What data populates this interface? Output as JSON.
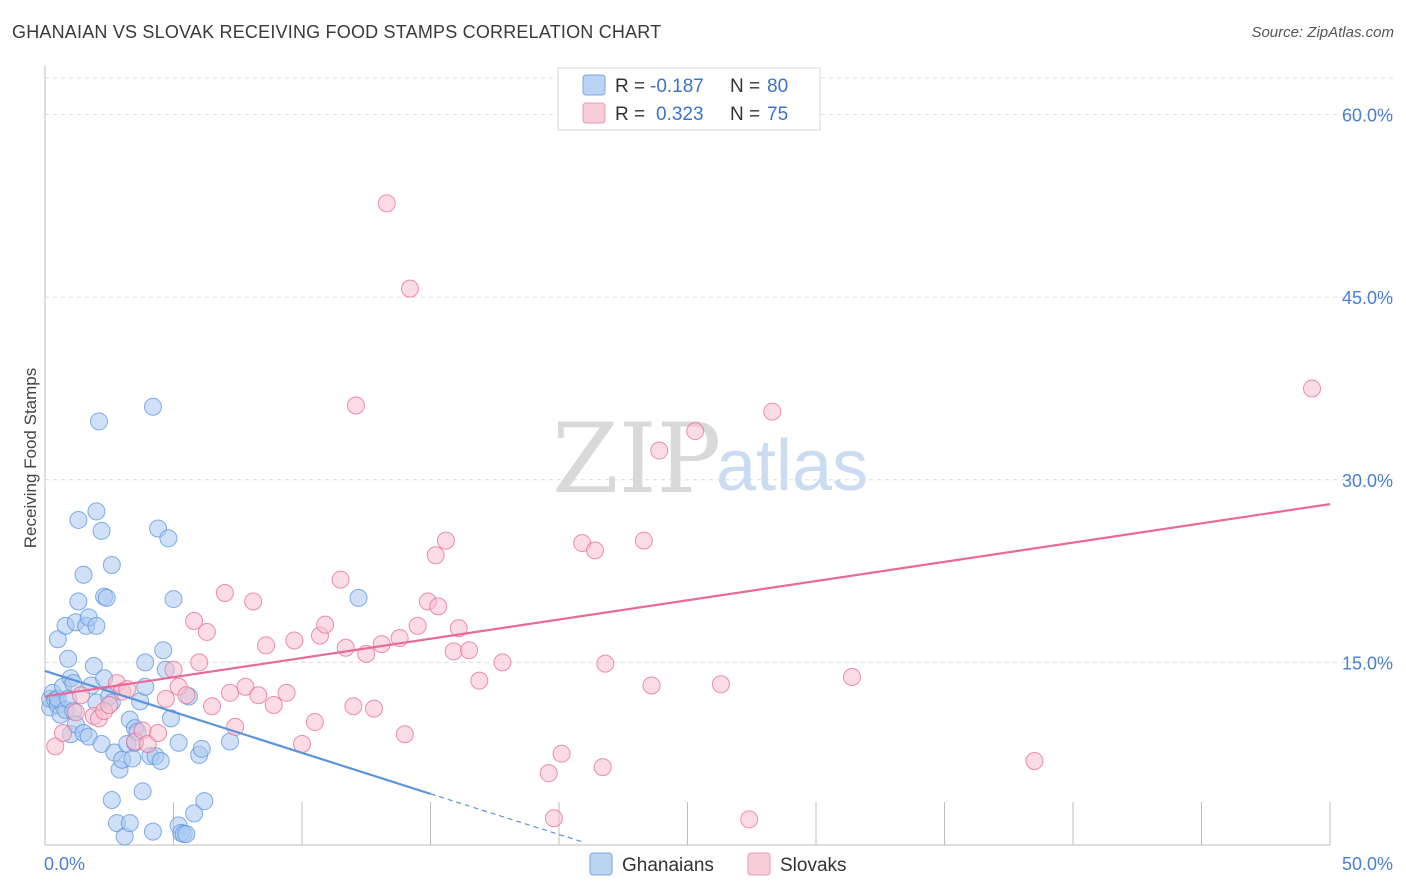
{
  "title": "GHANAIAN VS SLOVAK RECEIVING FOOD STAMPS CORRELATION CHART",
  "source": "Source: ZipAtlas.com",
  "watermark": {
    "zip": "ZIP",
    "atlas": "atlas"
  },
  "legend_top": [
    {
      "r_label": "R =",
      "r_value": "-0.187",
      "n_label": "N =",
      "n_value": "80",
      "color": "#a9c8f0",
      "stroke": "#7aa7e0"
    },
    {
      "r_label": "R =",
      "r_value": "0.323",
      "n_label": "N =",
      "n_value": "75",
      "color": "#f7bfd0",
      "stroke": "#ec9ab4"
    }
  ],
  "legend_bottom": [
    {
      "label": "Ghanaians",
      "color": "#a9c8f0",
      "stroke": "#7aa7e0"
    },
    {
      "label": "Slovaks",
      "color": "#f7bfd0",
      "stroke": "#ec9ab4"
    }
  ],
  "chart_data": {
    "type": "scatter",
    "title": "GHANAIAN VS SLOVAK RECEIVING FOOD STAMPS CORRELATION CHART",
    "ylabel": "Receiving Food Stamps",
    "xlabel": "",
    "xlim": [
      0,
      50
    ],
    "ylim": [
      0,
      63
    ],
    "x_tick_labels": [
      "0.0%",
      "50.0%"
    ],
    "y_ticks": [
      15,
      30,
      45,
      60
    ],
    "y_tick_labels": [
      "15.0%",
      "30.0%",
      "45.0%",
      "60.0%"
    ],
    "grid": true,
    "legend_position": "top-center",
    "series": [
      {
        "name": "Ghanaians",
        "color": "#5b93dc",
        "fill": "#a9c8f0",
        "trend": {
          "x0": 0,
          "y0": 14.3,
          "x1": 15,
          "y1": 4.2,
          "dash_to_x": 21,
          "dash_to_y": 0.2
        },
        "points": [
          [
            0.2,
            11.3
          ],
          [
            0.2,
            12.0
          ],
          [
            0.3,
            12.5
          ],
          [
            0.4,
            11.9
          ],
          [
            0.5,
            16.9
          ],
          [
            0.5,
            11.5
          ],
          [
            0.5,
            12.0
          ],
          [
            0.6,
            10.7
          ],
          [
            0.7,
            13.0
          ],
          [
            0.8,
            11.1
          ],
          [
            0.8,
            18.0
          ],
          [
            0.9,
            12.0
          ],
          [
            0.9,
            15.3
          ],
          [
            1.0,
            9.1
          ],
          [
            1.0,
            13.7
          ],
          [
            1.1,
            13.3
          ],
          [
            1.1,
            11.0
          ],
          [
            1.2,
            18.3
          ],
          [
            1.2,
            9.9
          ],
          [
            1.3,
            20.0
          ],
          [
            1.3,
            26.7
          ],
          [
            1.5,
            9.2
          ],
          [
            1.5,
            22.2
          ],
          [
            1.6,
            18.0
          ],
          [
            1.7,
            8.9
          ],
          [
            1.7,
            18.7
          ],
          [
            1.8,
            13.1
          ],
          [
            1.9,
            14.7
          ],
          [
            2.0,
            11.7
          ],
          [
            2.0,
            18.0
          ],
          [
            2.0,
            27.4
          ],
          [
            2.1,
            34.8
          ],
          [
            2.2,
            8.3
          ],
          [
            2.2,
            25.8
          ],
          [
            2.3,
            13.7
          ],
          [
            2.3,
            20.4
          ],
          [
            2.4,
            20.3
          ],
          [
            2.5,
            12.2
          ],
          [
            2.6,
            3.7
          ],
          [
            2.6,
            11.7
          ],
          [
            2.6,
            23.0
          ],
          [
            2.7,
            7.6
          ],
          [
            2.8,
            1.8
          ],
          [
            2.9,
            6.2
          ],
          [
            3.0,
            7.0
          ],
          [
            3.1,
            0.7
          ],
          [
            3.2,
            8.3
          ],
          [
            3.3,
            1.8
          ],
          [
            3.3,
            10.3
          ],
          [
            3.4,
            7.1
          ],
          [
            3.5,
            9.6
          ],
          [
            3.5,
            8.4
          ],
          [
            3.6,
            9.3
          ],
          [
            3.7,
            11.8
          ],
          [
            3.8,
            4.4
          ],
          [
            3.9,
            15.0
          ],
          [
            4.1,
            7.3
          ],
          [
            4.2,
            1.1
          ],
          [
            4.2,
            36.0
          ],
          [
            4.3,
            7.3
          ],
          [
            4.4,
            26.0
          ],
          [
            4.5,
            6.9
          ],
          [
            4.6,
            16.0
          ],
          [
            4.7,
            14.4
          ],
          [
            4.8,
            25.2
          ],
          [
            4.9,
            10.4
          ],
          [
            5.0,
            20.2
          ],
          [
            5.2,
            1.6
          ],
          [
            5.2,
            8.4
          ],
          [
            5.3,
            1.0
          ],
          [
            5.4,
            0.9
          ],
          [
            5.5,
            0.9
          ],
          [
            5.6,
            12.2
          ],
          [
            5.8,
            2.6
          ],
          [
            6.0,
            7.4
          ],
          [
            6.1,
            7.9
          ],
          [
            6.2,
            3.6
          ],
          [
            7.2,
            8.5
          ],
          [
            12.2,
            20.3
          ],
          [
            3.9,
            13.0
          ]
        ]
      },
      {
        "name": "Slovaks",
        "color": "#e86a95",
        "fill": "#f7bfd0",
        "trend": {
          "x0": 0,
          "y0": 12.2,
          "x1": 50,
          "y1": 28.0
        },
        "points": [
          [
            0.4,
            8.1
          ],
          [
            0.7,
            9.2
          ],
          [
            1.2,
            10.9
          ],
          [
            1.4,
            12.3
          ],
          [
            1.9,
            10.6
          ],
          [
            2.1,
            10.4
          ],
          [
            2.3,
            11.0
          ],
          [
            2.5,
            11.5
          ],
          [
            2.8,
            13.3
          ],
          [
            3.0,
            12.6
          ],
          [
            3.2,
            12.8
          ],
          [
            3.5,
            8.5
          ],
          [
            3.8,
            9.4
          ],
          [
            4.0,
            8.3
          ],
          [
            4.4,
            9.2
          ],
          [
            4.7,
            12.0
          ],
          [
            5.0,
            14.4
          ],
          [
            5.2,
            13.0
          ],
          [
            5.5,
            12.3
          ],
          [
            5.8,
            18.4
          ],
          [
            6.0,
            15.0
          ],
          [
            6.3,
            17.5
          ],
          [
            6.5,
            11.4
          ],
          [
            7.0,
            20.7
          ],
          [
            7.2,
            12.5
          ],
          [
            7.4,
            9.7
          ],
          [
            7.8,
            13.0
          ],
          [
            8.1,
            20.0
          ],
          [
            8.3,
            12.3
          ],
          [
            8.6,
            16.4
          ],
          [
            8.9,
            11.5
          ],
          [
            9.4,
            12.5
          ],
          [
            9.7,
            16.8
          ],
          [
            10.0,
            8.3
          ],
          [
            10.5,
            10.1
          ],
          [
            10.7,
            17.2
          ],
          [
            10.9,
            18.1
          ],
          [
            11.5,
            21.8
          ],
          [
            11.7,
            16.2
          ],
          [
            12.0,
            11.4
          ],
          [
            12.1,
            36.1
          ],
          [
            12.5,
            15.7
          ],
          [
            12.8,
            11.2
          ],
          [
            13.1,
            16.5
          ],
          [
            13.3,
            52.7
          ],
          [
            13.8,
            17.0
          ],
          [
            14.0,
            9.1
          ],
          [
            14.2,
            45.7
          ],
          [
            14.5,
            18.0
          ],
          [
            14.9,
            20.0
          ],
          [
            15.2,
            23.8
          ],
          [
            15.3,
            19.6
          ],
          [
            15.6,
            25.0
          ],
          [
            15.9,
            15.9
          ],
          [
            16.1,
            17.8
          ],
          [
            16.5,
            16.0
          ],
          [
            16.9,
            13.5
          ],
          [
            17.8,
            15.0
          ],
          [
            19.6,
            5.9
          ],
          [
            19.8,
            2.2
          ],
          [
            20.1,
            7.5
          ],
          [
            20.9,
            24.8
          ],
          [
            21.4,
            24.2
          ],
          [
            21.7,
            6.4
          ],
          [
            21.8,
            14.9
          ],
          [
            23.3,
            25.0
          ],
          [
            23.6,
            13.1
          ],
          [
            23.9,
            32.4
          ],
          [
            25.3,
            34.0
          ],
          [
            26.3,
            13.2
          ],
          [
            27.4,
            2.1
          ],
          [
            28.3,
            35.6
          ],
          [
            31.4,
            13.8
          ],
          [
            38.5,
            6.9
          ],
          [
            49.3,
            37.5
          ]
        ]
      }
    ]
  }
}
